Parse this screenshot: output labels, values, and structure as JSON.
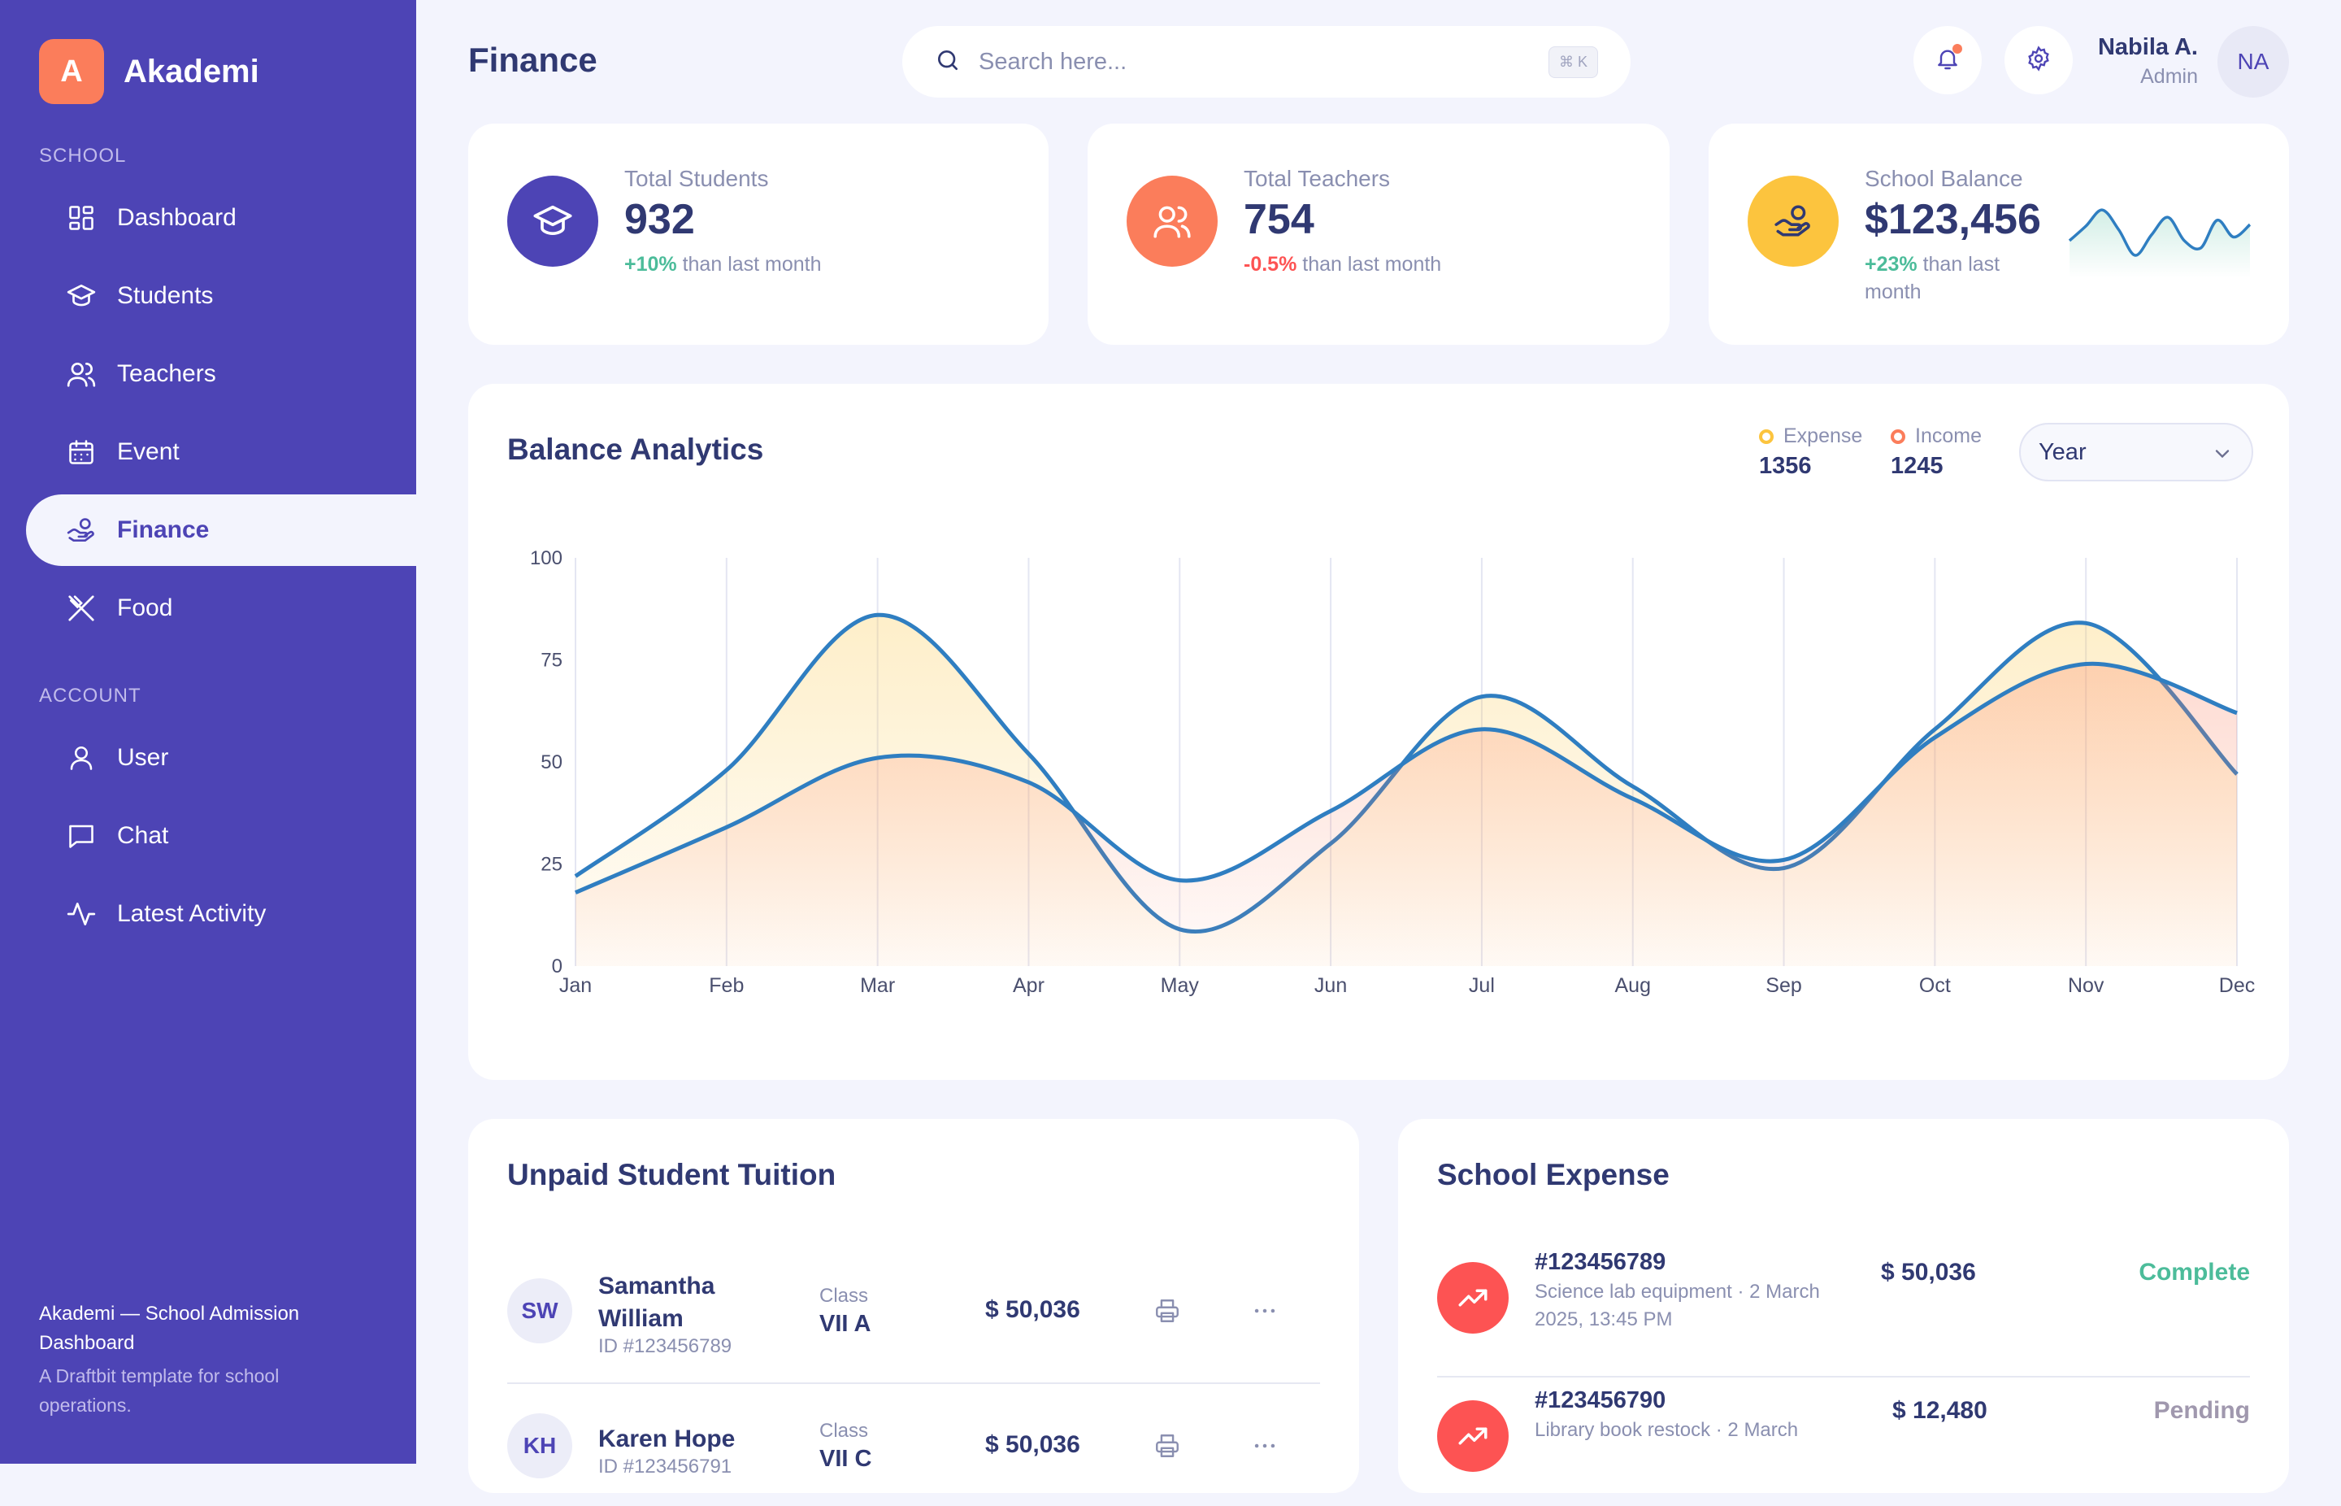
{
  "app": {
    "logo_letter": "A",
    "name": "Akademi"
  },
  "sidebar": {
    "school_section": "SCHOOL",
    "account_section": "ACCOUNT",
    "school_items": [
      {
        "label": "Dashboard",
        "icon": "dashboard-icon"
      },
      {
        "label": "Students",
        "icon": "graduation-cap-icon"
      },
      {
        "label": "Teachers",
        "icon": "users-icon"
      },
      {
        "label": "Event",
        "icon": "calendar-icon"
      },
      {
        "label": "Finance",
        "icon": "hand-coin-icon",
        "active": true
      },
      {
        "label": "Food",
        "icon": "utensils-icon"
      }
    ],
    "account_items": [
      {
        "label": "User",
        "icon": "user-icon"
      },
      {
        "label": "Chat",
        "icon": "chat-icon"
      },
      {
        "label": "Latest Activity",
        "icon": "activity-icon"
      }
    ],
    "footer_title": "Akademi — School Admission Dashboard",
    "footer_subtitle": "A Draftbit template for school operations."
  },
  "header": {
    "title": "Finance",
    "search_placeholder": "Search here...",
    "search_shortcut": "⌘ K",
    "user_name": "Nabila A.",
    "user_role": "Admin",
    "user_initials": "NA"
  },
  "stats": [
    {
      "label": "Total Students",
      "value": "932",
      "change": "+10%",
      "change_suffix": " than last month",
      "color": "#4d44b5"
    },
    {
      "label": "Total Teachers",
      "value": "754",
      "change": "-0.5%",
      "change_suffix": " than last month",
      "color": "#fb7d5b"
    },
    {
      "label": "School Balance",
      "value": "$123,456",
      "change": "+23%",
      "change_suffix": " than last month",
      "color": "#fcc43e"
    }
  ],
  "balance_sparkline": [
    40,
    60,
    82,
    55,
    20,
    48,
    72,
    40,
    30,
    68,
    45,
    62
  ],
  "analytics": {
    "title": "Balance Analytics",
    "expense_label": "Expense",
    "expense_value": "1356",
    "income_label": "Income",
    "income_value": "1245",
    "period": "Year"
  },
  "chart_data": {
    "type": "area",
    "title": "Balance Analytics",
    "categories": [
      "Jan",
      "Feb",
      "Mar",
      "Apr",
      "May",
      "Jun",
      "Jul",
      "Aug",
      "Sep",
      "Oct",
      "Nov",
      "Dec"
    ],
    "series": [
      {
        "name": "Expense",
        "color": "#fcc43e",
        "values": [
          22,
          48,
          86,
          52,
          9,
          30,
          66,
          44,
          24,
          58,
          84,
          47
        ]
      },
      {
        "name": "Income",
        "color": "#fb7d5b",
        "values": [
          18,
          34,
          51,
          45,
          21,
          38,
          58,
          41,
          26,
          56,
          74,
          62
        ]
      }
    ],
    "yticks": [
      0,
      25,
      50,
      75,
      100
    ],
    "ylim": [
      0,
      100
    ],
    "line_color": "#2f7ec1",
    "grid": true
  },
  "tuition": {
    "title": "Unpaid Student Tuition",
    "class_label": "Class",
    "rows": [
      {
        "initials": "SW",
        "name": "Samantha William",
        "id": "ID #123456789",
        "class": "VII A",
        "amount": "$ 50,036"
      },
      {
        "initials": "KH",
        "name": "Karen Hope",
        "id": "ID #123456791",
        "class": "VII C",
        "amount": "$ 50,036"
      }
    ]
  },
  "expense": {
    "title": "School Expense",
    "rows": [
      {
        "id": "#123456789",
        "desc": "Science lab equipment · 2 March 2025, 13:45 PM",
        "amount": "$ 50,036",
        "status": "Complete",
        "status_color": "#4cbc9a"
      },
      {
        "id": "#123456790",
        "desc": "Library book restock · 2 March",
        "amount": "$ 12,480",
        "status": "Pending",
        "status_color": "#a098ae"
      }
    ]
  }
}
